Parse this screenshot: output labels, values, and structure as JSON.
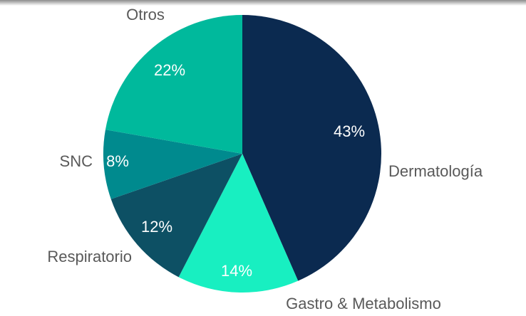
{
  "chart_data": {
    "type": "pie",
    "categories": [
      "Dermatología",
      "Gastro & Metabolismo",
      "Respiratorio",
      "SNC",
      "Otros"
    ],
    "values": [
      43,
      14,
      12,
      8,
      22
    ],
    "value_labels": [
      "43%",
      "14%",
      "12%",
      "8%",
      "22%"
    ],
    "colors": [
      "#0b2a50",
      "#18efc1",
      "#0d5064",
      "#008a8e",
      "#00b99c"
    ]
  }
}
